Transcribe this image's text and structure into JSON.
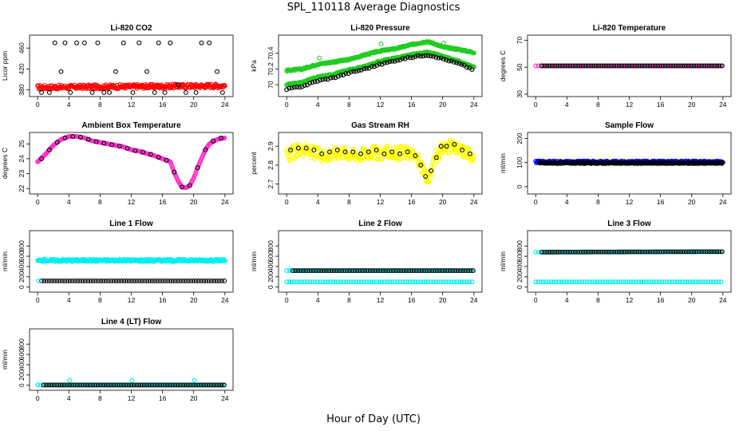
{
  "page": {
    "title": "SPL_110118  Average Diagnostics",
    "xlabel": "Hour of Day (UTC)"
  },
  "colors": {
    "black": "#000000",
    "red": "#ff0000",
    "green": "#22cc22",
    "lightgreen": "#33dd33",
    "magenta": "#ff33cc",
    "yellow": "#ffff00",
    "blue": "#0000ff",
    "cyan": "#00eeee"
  },
  "chart_data": [
    {
      "type": "scatter",
      "title": "Li-820 CO2",
      "ylabel": "Licor ppm",
      "xlim": [
        0,
        24
      ],
      "xticks": [
        0,
        4,
        8,
        12,
        16,
        20,
        24
      ],
      "ylim": [
        372,
        480
      ],
      "yticks": [
        380,
        420,
        460
      ],
      "series": [
        {
          "name": "secondary",
          "color": "red",
          "kind": "band",
          "x0": 0,
          "x1": 24,
          "y_start": 385,
          "y_end": 388,
          "spread": 4
        },
        {
          "name": "primary",
          "color": "black",
          "kind": "points",
          "x": [
            0.5,
            1.5,
            2.2,
            3,
            3.5,
            4.2,
            5,
            6,
            7,
            7.7,
            8.5,
            9.2,
            10,
            11,
            12.2,
            13,
            14,
            15,
            15.5,
            16.3,
            17,
            18,
            19,
            20.3,
            21,
            22,
            23,
            23.7
          ],
          "y": [
            375,
            375,
            470,
            415,
            470,
            375,
            470,
            470,
            375,
            470,
            375,
            375,
            415,
            470,
            375,
            470,
            415,
            375,
            470,
            375,
            470,
            390,
            375,
            375,
            470,
            470,
            415,
            375
          ]
        }
      ]
    },
    {
      "type": "scatter",
      "title": "Li-820 Pressure",
      "ylabel": "kPa",
      "xlim": [
        0,
        24
      ],
      "xticks": [
        0,
        4,
        8,
        12,
        16,
        20,
        24
      ],
      "ylim": [
        69.88,
        70.6
      ],
      "yticks": [
        70.0,
        70.2,
        70.4
      ],
      "series": [
        {
          "name": "upper",
          "color": "green",
          "kind": "trend",
          "x": [
            0,
            2,
            4,
            6,
            8,
            10,
            12,
            14,
            16,
            18,
            19,
            20,
            22,
            24
          ],
          "y": [
            70.18,
            70.2,
            70.26,
            70.29,
            70.32,
            70.38,
            70.43,
            70.46,
            70.51,
            70.55,
            70.52,
            70.48,
            70.45,
            70.41
          ]
        },
        {
          "name": "middle",
          "color": "green",
          "kind": "trend",
          "x": [
            0,
            2,
            4,
            6,
            8,
            10,
            12,
            14,
            16,
            18,
            19,
            20,
            22,
            24
          ],
          "y": [
            70.0,
            70.03,
            70.1,
            70.13,
            70.19,
            70.23,
            70.3,
            70.34,
            70.38,
            70.41,
            70.39,
            70.36,
            70.3,
            70.22
          ]
        },
        {
          "name": "primary",
          "color": "black",
          "kind": "trend",
          "x": [
            0,
            2,
            4,
            6,
            8,
            10,
            12,
            14,
            16,
            18,
            19,
            20,
            22,
            24
          ],
          "y": [
            69.94,
            69.98,
            70.05,
            70.09,
            70.15,
            70.2,
            70.26,
            70.31,
            70.35,
            70.38,
            70.36,
            70.33,
            70.27,
            70.19
          ]
        },
        {
          "name": "outliers",
          "color": "green",
          "kind": "points",
          "x": [
            4.2,
            12.1,
            20.1
          ],
          "y": [
            70.34,
            70.52,
            70.53
          ]
        }
      ]
    },
    {
      "type": "scatter",
      "title": "Li-820 Temperature",
      "ylabel": "degrees C",
      "xlim": [
        0,
        24
      ],
      "xticks": [
        0,
        4,
        8,
        12,
        16,
        20,
        24
      ],
      "ylim": [
        30,
        72
      ],
      "yticks": [
        30,
        50,
        70
      ],
      "series": [
        {
          "name": "primary",
          "color": "magenta",
          "kind": "band",
          "x0": 0,
          "x1": 24,
          "y_start": 51,
          "y_end": 51,
          "spread": 0
        },
        {
          "name": "secondary",
          "color": "black",
          "kind": "band",
          "x0": 0.8,
          "x1": 24,
          "y_start": 51,
          "y_end": 51,
          "spread": 0
        }
      ]
    },
    {
      "type": "scatter",
      "title": "Ambient Box Temperature",
      "ylabel": "degrees C",
      "xlim": [
        0,
        24
      ],
      "xticks": [
        0,
        4,
        8,
        12,
        16,
        20,
        24
      ],
      "ylim": [
        21.8,
        25.6
      ],
      "yticks": [
        22,
        23,
        24,
        25
      ],
      "series": [
        {
          "name": "primary",
          "color": "magenta",
          "kind": "curve",
          "x": [
            0,
            1,
            2,
            3,
            4,
            5,
            6,
            7,
            8,
            9,
            10,
            11,
            12,
            13,
            14,
            15,
            16,
            17,
            17.5,
            18,
            18.5,
            19,
            19.5,
            20,
            20.5,
            21,
            21.5,
            22,
            23,
            24
          ],
          "y": [
            23.8,
            24.3,
            24.9,
            25.3,
            25.5,
            25.5,
            25.4,
            25.2,
            25.1,
            25.0,
            24.9,
            24.8,
            24.6,
            24.5,
            24.35,
            24.2,
            24.0,
            23.8,
            23.1,
            22.5,
            22.1,
            22.05,
            22.2,
            22.7,
            23.4,
            24.0,
            24.6,
            25.0,
            25.3,
            25.4
          ]
        },
        {
          "name": "secondary",
          "color": "black",
          "kind": "points",
          "x": [
            0.5,
            1.5,
            2.5,
            3.5,
            4.5,
            5.5,
            6.5,
            7.5,
            8.5,
            9.5,
            10.5,
            11.5,
            12.5,
            13.5,
            14.5,
            15.5,
            16.5,
            17.5,
            18.5,
            19.5,
            20.5,
            21.5,
            22.5,
            23.5
          ],
          "y": [
            24.0,
            24.6,
            25.1,
            25.4,
            25.5,
            25.45,
            25.3,
            25.15,
            25.05,
            24.95,
            24.85,
            24.7,
            24.55,
            24.45,
            24.3,
            24.1,
            23.9,
            23.1,
            22.1,
            22.2,
            23.4,
            24.6,
            25.2,
            25.4
          ]
        }
      ]
    },
    {
      "type": "scatter",
      "title": "Gas Stream RH",
      "ylabel": "percent",
      "xlim": [
        0,
        24
      ],
      "xticks": [
        0,
        4,
        8,
        12,
        16,
        20,
        24
      ],
      "ylim": [
        2.66,
        2.96
      ],
      "yticks": [
        2.7,
        2.8,
        2.9
      ],
      "series": [
        {
          "name": "primary",
          "color": "yellow",
          "kind": "noisy",
          "x": [
            0,
            1,
            2,
            3,
            4,
            5,
            6,
            7,
            8,
            9,
            10,
            11,
            12,
            13,
            14,
            15,
            16,
            17,
            17.5,
            18,
            18.5,
            19,
            20,
            21,
            22,
            23,
            24
          ],
          "y": [
            2.85,
            2.87,
            2.89,
            2.87,
            2.86,
            2.85,
            2.86,
            2.87,
            2.86,
            2.85,
            2.86,
            2.87,
            2.86,
            2.87,
            2.86,
            2.87,
            2.86,
            2.82,
            2.77,
            2.72,
            2.76,
            2.84,
            2.89,
            2.9,
            2.88,
            2.87,
            2.85
          ],
          "spread": 0.035
        },
        {
          "name": "secondary",
          "color": "black",
          "kind": "points",
          "x": [
            0.5,
            1.5,
            2.5,
            3.5,
            4.5,
            5.5,
            6.5,
            7.5,
            8.5,
            9.5,
            10.5,
            11.5,
            12.5,
            13.5,
            14.5,
            15.5,
            16.5,
            17.2,
            17.8,
            18.5,
            19.2,
            19.8,
            20.5,
            21.5,
            22.5,
            23.5
          ],
          "y": [
            2.88,
            2.89,
            2.89,
            2.88,
            2.86,
            2.87,
            2.88,
            2.87,
            2.87,
            2.86,
            2.87,
            2.88,
            2.86,
            2.87,
            2.86,
            2.87,
            2.85,
            2.8,
            2.74,
            2.77,
            2.84,
            2.9,
            2.9,
            2.91,
            2.88,
            2.86
          ]
        }
      ]
    },
    {
      "type": "scatter",
      "title": "Sample Flow",
      "ylabel": "ml/min",
      "xlim": [
        0,
        24
      ],
      "xticks": [
        0,
        4,
        8,
        12,
        16,
        20,
        24
      ],
      "ylim": [
        -20,
        215
      ],
      "yticks": [
        0,
        100,
        200
      ],
      "series": [
        {
          "name": "primary",
          "color": "blue",
          "kind": "band",
          "x0": 0,
          "x1": 24,
          "y_start": 103,
          "y_end": 103,
          "spread": 4
        },
        {
          "name": "secondary",
          "color": "black",
          "kind": "band",
          "x0": 0.5,
          "x1": 24,
          "y_start": 98,
          "y_end": 98,
          "spread": 2
        }
      ]
    },
    {
      "type": "scatter",
      "title": "Line 1 Flow",
      "ylabel": "ml/min",
      "xlim": [
        0,
        24
      ],
      "xticks": [
        0,
        4,
        8,
        12,
        16,
        20,
        24
      ],
      "ylim": [
        -50,
        1050
      ],
      "yticks": [
        0,
        200,
        400,
        600,
        800
      ],
      "series": [
        {
          "name": "primary",
          "color": "cyan",
          "kind": "band",
          "x0": 0,
          "x1": 24,
          "y_start": 520,
          "y_end": 520,
          "spread": 22
        },
        {
          "name": "secondary",
          "color": "black",
          "kind": "band",
          "x0": 0.5,
          "x1": 24,
          "y_start": 120,
          "y_end": 120,
          "spread": 0
        },
        {
          "name": "secondary-cyan",
          "color": "cyan",
          "kind": "points",
          "x": [
            0.1
          ],
          "y": [
            120
          ]
        }
      ]
    },
    {
      "type": "scatter",
      "title": "Line 2 Flow",
      "ylabel": "ml/min",
      "xlim": [
        0,
        24
      ],
      "xticks": [
        0,
        4,
        8,
        12,
        16,
        20,
        24
      ],
      "ylim": [
        -50,
        1050
      ],
      "yticks": [
        0,
        200,
        400,
        600,
        800
      ],
      "series": [
        {
          "name": "primary",
          "color": "cyan",
          "kind": "band",
          "x0": 0,
          "x1": 24,
          "y_start": 100,
          "y_end": 100,
          "spread": 0
        },
        {
          "name": "secondary-cyan",
          "color": "cyan",
          "kind": "band",
          "x0": 0,
          "x1": 24,
          "y_start": 320,
          "y_end": 320,
          "spread": 0
        },
        {
          "name": "secondary",
          "color": "black",
          "kind": "band",
          "x0": 0.8,
          "x1": 24,
          "y_start": 320,
          "y_end": 320,
          "spread": 0
        }
      ]
    },
    {
      "type": "scatter",
      "title": "Line 3 Flow",
      "ylabel": "ml/min",
      "xlim": [
        0,
        24
      ],
      "xticks": [
        0,
        4,
        8,
        12,
        16,
        20,
        24
      ],
      "ylim": [
        -50,
        1050
      ],
      "yticks": [
        0,
        200,
        400,
        600,
        800
      ],
      "series": [
        {
          "name": "primary",
          "color": "cyan",
          "kind": "band",
          "x0": 0,
          "x1": 24,
          "y_start": 100,
          "y_end": 100,
          "spread": 0
        },
        {
          "name": "secondary-cyan",
          "color": "cyan",
          "kind": "band",
          "x0": 0,
          "x1": 24,
          "y_start": 680,
          "y_end": 690,
          "spread": 0
        },
        {
          "name": "secondary",
          "color": "black",
          "kind": "band",
          "x0": 0.8,
          "x1": 24,
          "y_start": 680,
          "y_end": 690,
          "spread": 0
        }
      ]
    },
    {
      "type": "scatter",
      "title": "Line 4 (LT) Flow",
      "ylabel": "ml/min",
      "xlim": [
        0,
        24
      ],
      "xticks": [
        0,
        4,
        8,
        12,
        16,
        20,
        24
      ],
      "ylim": [
        -50,
        1050
      ],
      "yticks": [
        0,
        200,
        400,
        600,
        800
      ],
      "series": [
        {
          "name": "primary",
          "color": "cyan",
          "kind": "band",
          "x0": 0,
          "x1": 24,
          "y_start": 5,
          "y_end": 5,
          "spread": 0
        },
        {
          "name": "secondary",
          "color": "black",
          "kind": "band",
          "x0": 0.8,
          "x1": 24,
          "y_start": 5,
          "y_end": 5,
          "spread": 0
        },
        {
          "name": "outliers",
          "color": "cyan",
          "kind": "points",
          "x": [
            4.1,
            12.1,
            20.1
          ],
          "y": [
            95,
            95,
            95
          ]
        }
      ]
    }
  ]
}
